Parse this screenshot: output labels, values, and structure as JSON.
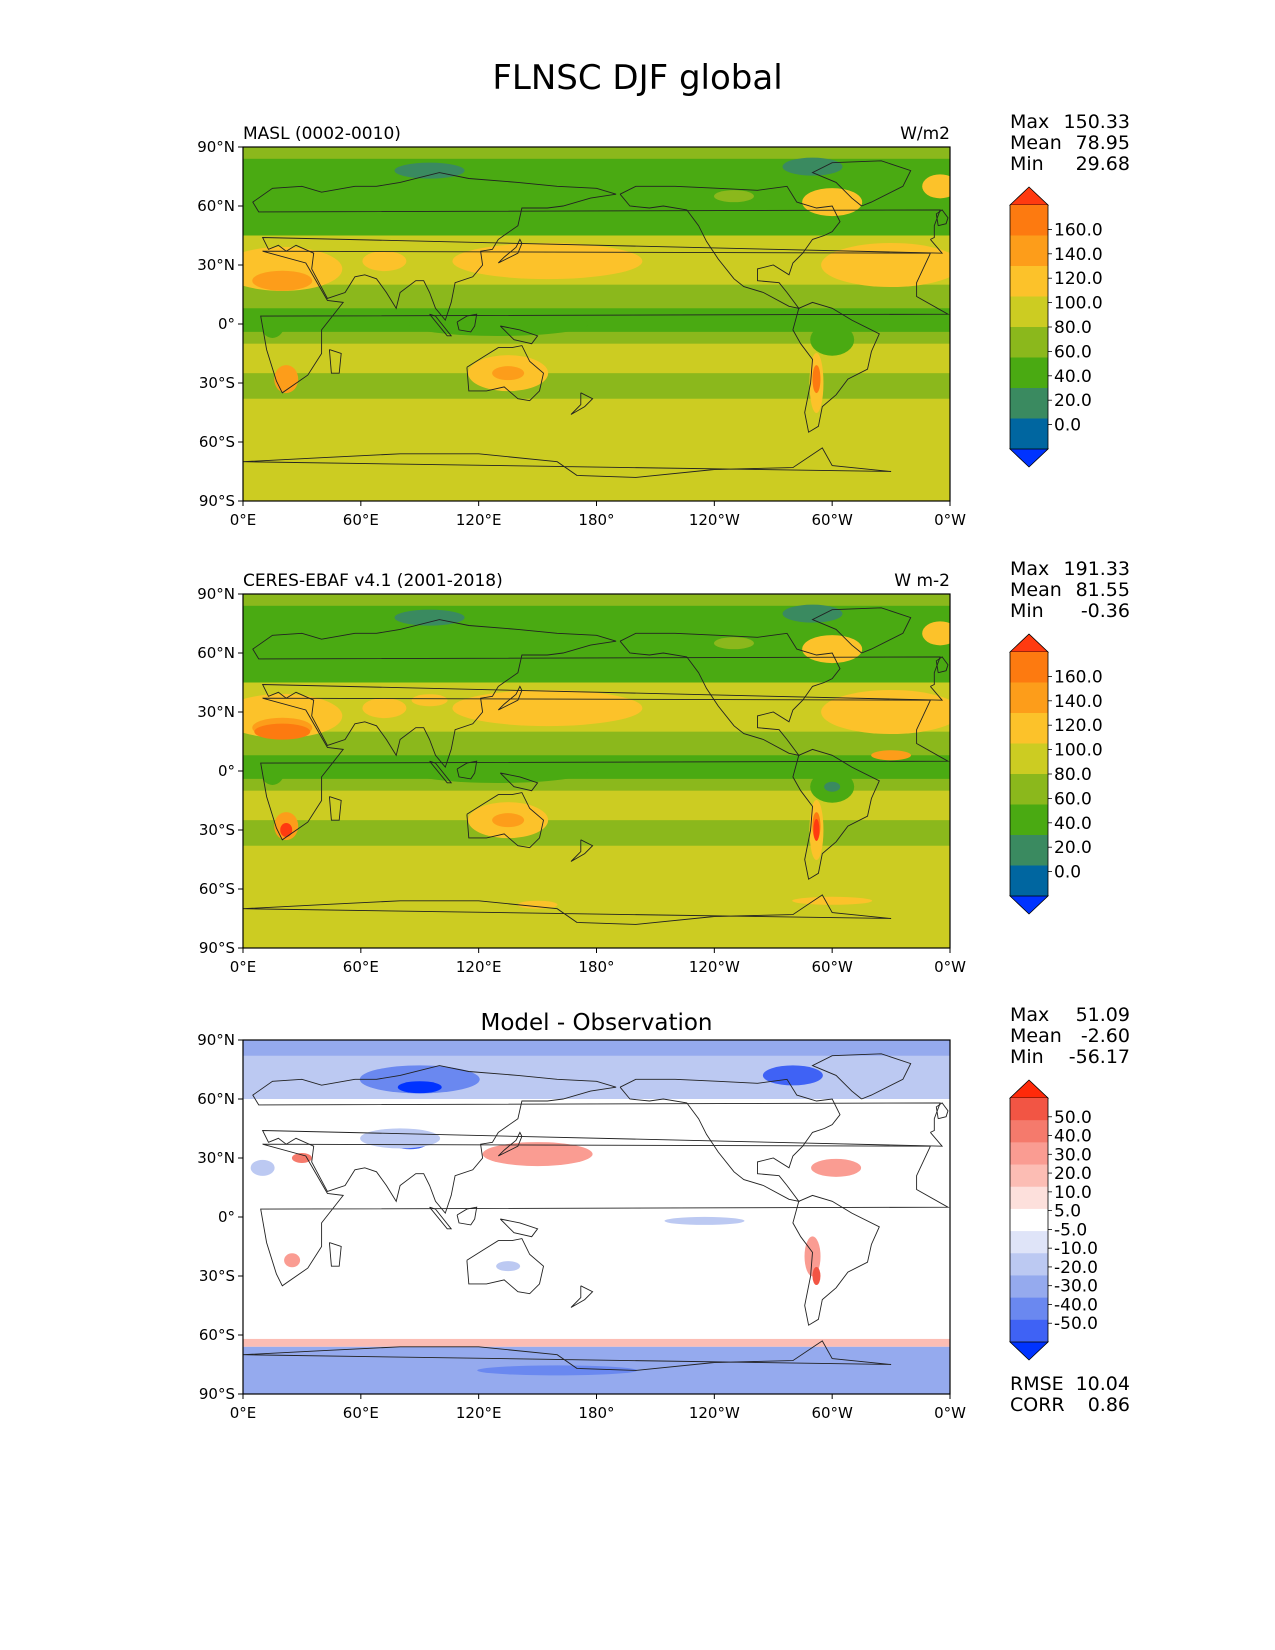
{
  "title": "FLNSC DJF global",
  "x_ticks": [
    "0°E",
    "60°E",
    "120°E",
    "180°",
    "120°W",
    "60°W",
    "0°W"
  ],
  "y_ticks": [
    "90°N",
    "60°N",
    "30°N",
    "0°",
    "30°S",
    "60°S",
    "90°S"
  ],
  "stat_labels": {
    "max": "Max",
    "mean": "Mean",
    "min": "Min",
    "rmse": "RMSE",
    "corr": "CORR"
  },
  "colors": {
    "seq": [
      "#0033ff",
      "#0066a0",
      "#3a8a60",
      "#4aaa12",
      "#8bb81c",
      "#cccc22",
      "#fcc22a",
      "#fd9d1a",
      "#fd7a10",
      "#ff3a10"
    ],
    "diff": [
      "#0033ff",
      "#3f62f5",
      "#6a88f0",
      "#95aaee",
      "#bcc9f2",
      "#dfe4f8",
      "#ffffff",
      "#fde0dc",
      "#fcbdb4",
      "#fa9c92",
      "#f57a6c",
      "#f25544",
      "#ff2a0a"
    ],
    "coast": "#222222"
  },
  "panels": [
    {
      "id": "model",
      "left_title": "MASL (0002-0010)",
      "center_title": "",
      "units": "W/m2",
      "stats": {
        "max": "150.33",
        "mean": "78.95",
        "min": "29.68"
      },
      "colorbar": {
        "kind": "seq",
        "labels": [
          "160.0",
          "140.0",
          "120.0",
          "100.0",
          "80.0",
          "60.0",
          "40.0",
          "20.0",
          "0.0"
        ]
      },
      "diff": false,
      "variant": 0
    },
    {
      "id": "obs",
      "left_title": "CERES-EBAF v4.1 (2001-2018)",
      "center_title": "",
      "units": "W m-2",
      "stats": {
        "max": "191.33",
        "mean": "81.55",
        "min": "-0.36"
      },
      "colorbar": {
        "kind": "seq",
        "labels": [
          "160.0",
          "140.0",
          "120.0",
          "100.0",
          "80.0",
          "60.0",
          "40.0",
          "20.0",
          "0.0"
        ]
      },
      "diff": false,
      "variant": 1
    },
    {
      "id": "diff",
      "left_title": "",
      "center_title": "Model - Observation",
      "units": "",
      "stats": {
        "max": "51.09",
        "mean": "-2.60",
        "min": "-56.17"
      },
      "colorbar": {
        "kind": "diff",
        "labels": [
          "50.0",
          "40.0",
          "30.0",
          "20.0",
          "10.0",
          "5.0",
          "-5.0",
          "-10.0",
          "-20.0",
          "-30.0",
          "-40.0",
          "-50.0"
        ]
      },
      "diff": true,
      "variant": 2,
      "extra_stats": {
        "rmse": "10.04",
        "corr": "0.86"
      }
    }
  ]
}
